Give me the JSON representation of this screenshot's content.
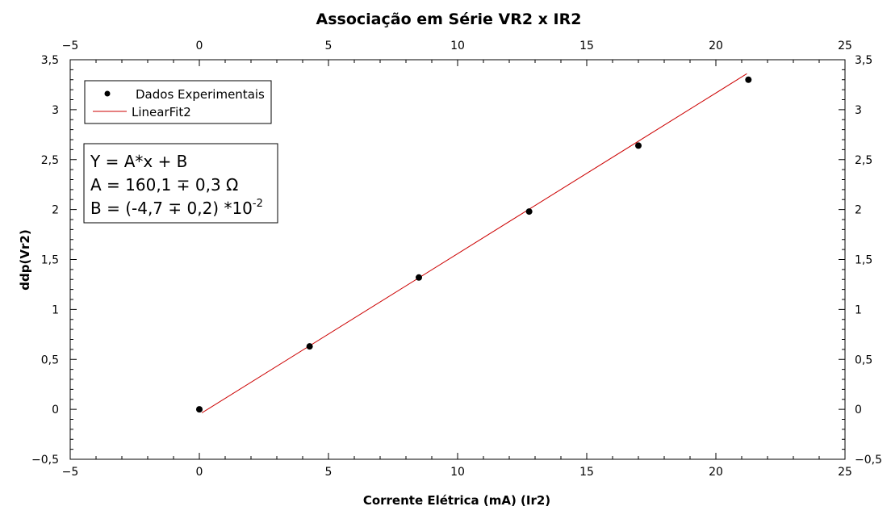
{
  "chart_data": {
    "type": "scatter",
    "title": "Associação em Série VR2 x IR2",
    "xlabel": "Corrente Elétrica (mA) (Ir2)",
    "ylabel": "ddp(Vr2)",
    "xlim": [
      -5,
      25
    ],
    "ylim": [
      -0.5,
      3.5
    ],
    "x_ticks": [
      "−5",
      "0",
      "5",
      "10",
      "15",
      "20",
      "25"
    ],
    "x_tick_values": [
      -5,
      0,
      5,
      10,
      15,
      20,
      25
    ],
    "y_ticks": [
      "−0,5",
      "0",
      "0,5",
      "1",
      "1,5",
      "2",
      "2,5",
      "3",
      "3,5"
    ],
    "y_tick_values": [
      -0.5,
      0,
      0.5,
      1,
      1.5,
      2,
      2.5,
      3,
      3.5
    ],
    "grid": false,
    "legend_position": "top-left",
    "series": [
      {
        "name": "Dados Experimentais",
        "kind": "points",
        "color": "#000000",
        "x": [
          0,
          4.27,
          8.5,
          12.77,
          17.0,
          21.26
        ],
        "y": [
          0,
          0.63,
          1.32,
          1.98,
          2.64,
          3.3
        ]
      },
      {
        "name": "LinearFit2",
        "kind": "line",
        "color": "#cc0000",
        "x": [
          0.1,
          21.2
        ],
        "y": [
          -0.035,
          3.36
        ]
      }
    ],
    "annotation": {
      "line1": "Y = A*x + B",
      "line2": "A = 160,1 ∓ 0,3 Ω",
      "line3_prefix": "B = (-4,7 ∓ 0,2) *10",
      "line3_exponent": "-2"
    }
  }
}
